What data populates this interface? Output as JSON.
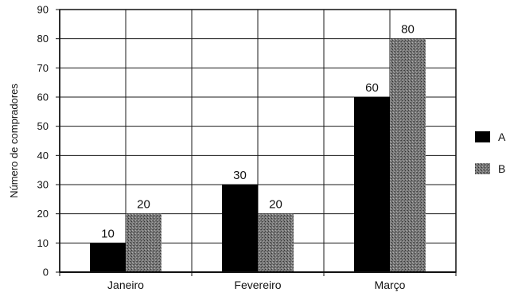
{
  "chart_data": {
    "type": "bar",
    "title": "",
    "xlabel": "",
    "ylabel": "Número de compradores",
    "ylim": [
      0,
      90
    ],
    "yticks": [
      0,
      10,
      20,
      30,
      40,
      50,
      60,
      70,
      80,
      90
    ],
    "categories": [
      "Janeiro",
      "Fevereiro",
      "Março"
    ],
    "series": [
      {
        "name": "A",
        "values": [
          10,
          30,
          60
        ],
        "color": "#000000"
      },
      {
        "name": "B",
        "values": [
          20,
          20,
          80
        ],
        "color": "#6e6e6e",
        "pattern": "stipple"
      }
    ],
    "data_labels": true,
    "grid": true,
    "legend": "right"
  }
}
